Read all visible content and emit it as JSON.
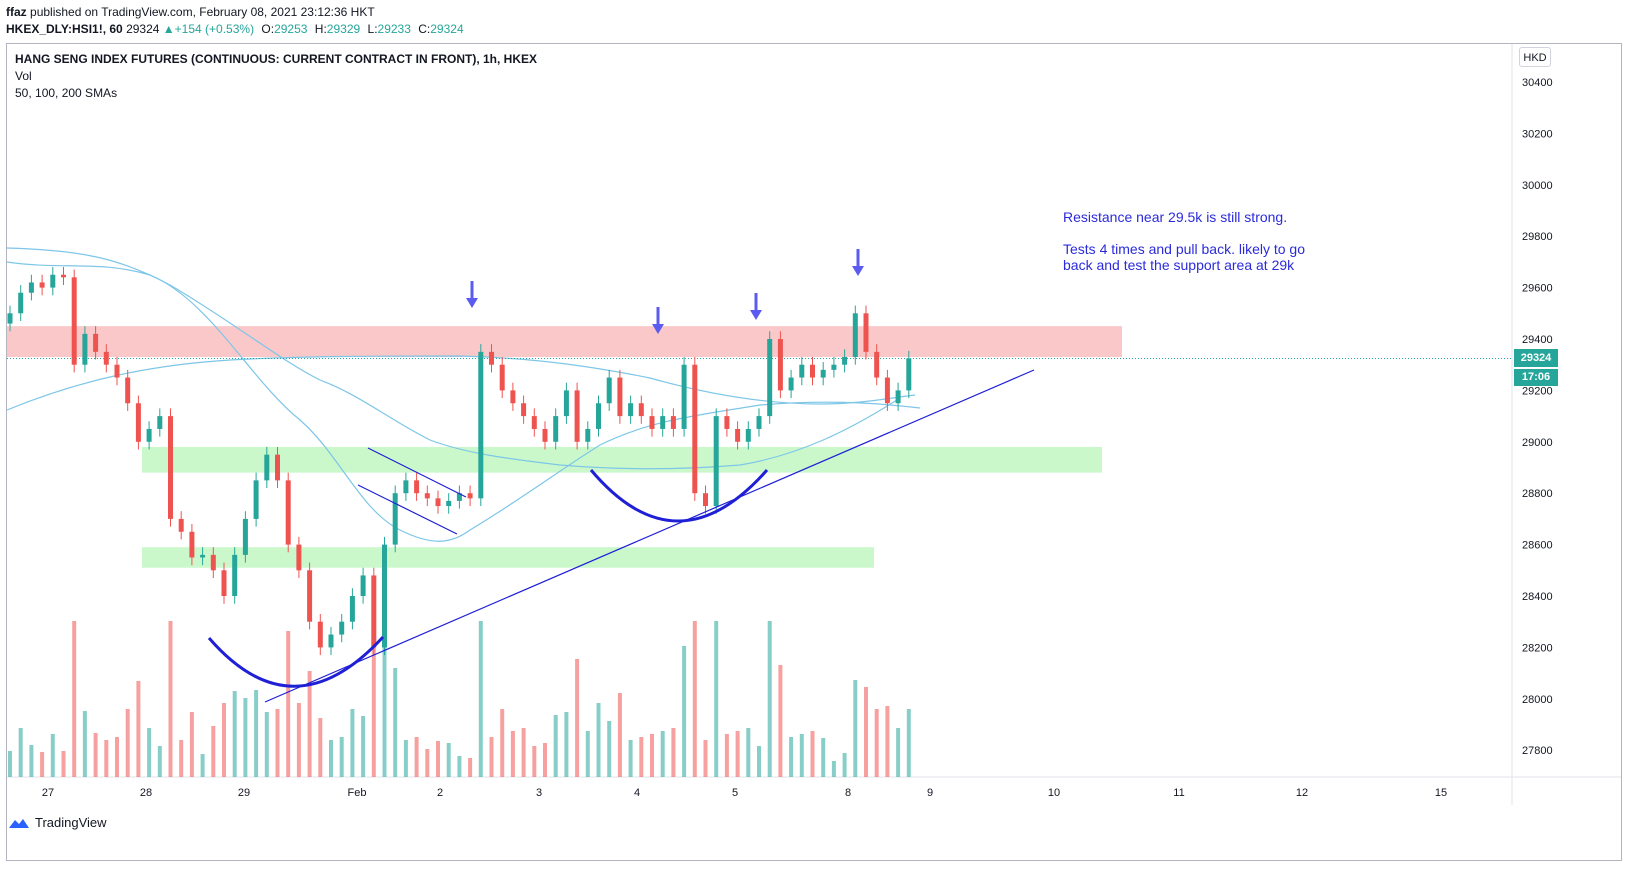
{
  "header": {
    "author": "ffaz",
    "published": "published on TradingView.com, February 08, 2021 23:12:36 HKT",
    "symbol": "HKEX_DLY:HSI1!, 60",
    "last": "29324",
    "change": "+154 (+0.53%)",
    "open_label": "O:",
    "open": "29253",
    "high_label": "H:",
    "high": "29329",
    "low_label": "L:",
    "low": "29233",
    "close_label": "C:",
    "close": "29324"
  },
  "legend": {
    "title": "HANG SENG INDEX FUTURES (CONTINUOUS: CURRENT CONTRACT IN FRONT), 1h, HKEX",
    "vol": "Vol",
    "smas": "50, 100, 200 SMAs"
  },
  "annotation": {
    "line1": "Resistance near 29.5k is still strong.",
    "line2": "Tests 4 times and pull back. likely to go",
    "line3": "back and test the support area at 29k"
  },
  "price_axis": {
    "currency": "HKD",
    "last_price_tag": "29324",
    "countdown_tag": "17:06"
  },
  "footer": {
    "brand": "TradingView"
  },
  "colors": {
    "up": "#26a69a",
    "down": "#ef5350",
    "resistance_zone": "#f8b5b5",
    "support_zone": "#b9f5b9",
    "sma": "#7dc6e8",
    "drawing": "#1f1fd6",
    "arrow": "#5b5bf0"
  },
  "chart_data": {
    "type": "candlestick",
    "ylim": [
      27700,
      30500
    ],
    "yticks": [
      30400,
      30200,
      30000,
      29800,
      29600,
      29400,
      29200,
      29000,
      28800,
      28600,
      28400,
      28200,
      28000,
      27800
    ],
    "xticks": [
      "27",
      "28",
      "29",
      "Feb",
      "2",
      "3",
      "4",
      "5",
      "8",
      "9",
      "10",
      "11",
      "12",
      "15"
    ],
    "resistance_zone": [
      29330,
      29450
    ],
    "support_zones": [
      [
        28880,
        28980
      ],
      [
        28510,
        28590
      ]
    ],
    "last_price": 29324,
    "ohlc_close_approx": [
      29500,
      29580,
      29620,
      29600,
      29650,
      29640,
      29300,
      29420,
      29350,
      29300,
      29250,
      29150,
      29000,
      29050,
      29100,
      28700,
      28650,
      28550,
      28560,
      28500,
      28400,
      28560,
      28700,
      28850,
      28950,
      28850,
      28600,
      28500,
      28300,
      28200,
      28250,
      28300,
      28400,
      28480,
      28200,
      28600,
      28800,
      28850,
      28800,
      28780,
      28750,
      28770,
      28800,
      28780,
      29350,
      29300,
      29200,
      29150,
      29100,
      29050,
      29000,
      29100,
      29200,
      29000,
      29050,
      29150,
      29250,
      29100,
      29150,
      29100,
      29050,
      29100,
      29050,
      29300,
      28800,
      28750,
      29100,
      29050,
      29000,
      29050,
      29100,
      29400,
      29200,
      29250,
      29300,
      29250,
      29280,
      29300,
      29330,
      29500,
      29350,
      29250,
      29150,
      29200,
      29324
    ]
  }
}
